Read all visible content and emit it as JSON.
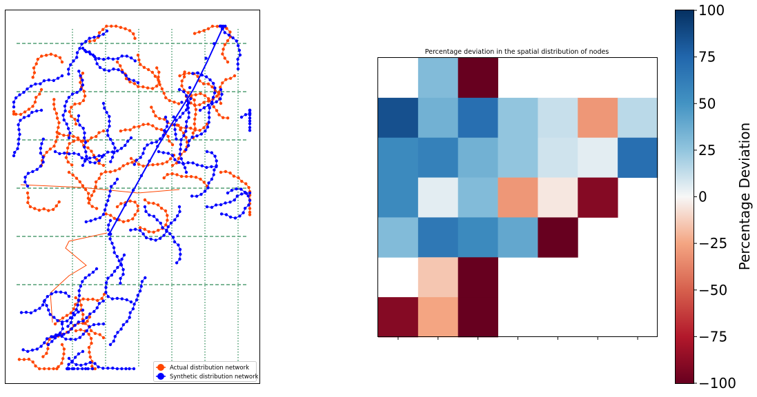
{
  "colors": {
    "actual": "#ff4500",
    "synthetic": "#0000ff",
    "grid": "#2e8b57",
    "axes": "#000000"
  },
  "chart_data": [
    {
      "type": "network-map",
      "title": "",
      "legend_position": "lower-right",
      "legend": [
        {
          "label": "Actual distribution network",
          "color": "#ff4500",
          "marker": "circle"
        },
        {
          "label": "Synthetic distribution network",
          "color": "#0000ff",
          "marker": "circle"
        }
      ],
      "grid": {
        "horizontal": "dashed",
        "vertical": "dotted",
        "horizontal_lines": 6,
        "vertical_lines": 6
      }
    },
    {
      "type": "heatmap",
      "title": "Percentage deviation in the spatial distribution of nodes",
      "rows": 7,
      "cols": 7,
      "values": [
        [
          null,
          30,
          -100,
          null,
          null,
          null,
          null
        ],
        [
          85,
          35,
          70,
          25,
          12,
          -30,
          15
        ],
        [
          55,
          60,
          35,
          25,
          10,
          5,
          70
        ],
        [
          55,
          5,
          30,
          -30,
          -5,
          -90,
          null
        ],
        [
          30,
          65,
          55,
          40,
          -100,
          null,
          null
        ],
        [
          null,
          -15,
          -100,
          null,
          null,
          null,
          null
        ],
        [
          -90,
          -25,
          -100,
          null,
          null,
          null,
          null
        ]
      ],
      "vmin": -100,
      "vmax": 100,
      "colorbar": {
        "label": "Percentage Deviation",
        "ticks": [
          "100",
          "75",
          "50",
          "25",
          "0",
          "−25",
          "−50",
          "−75",
          "−100"
        ]
      }
    }
  ]
}
